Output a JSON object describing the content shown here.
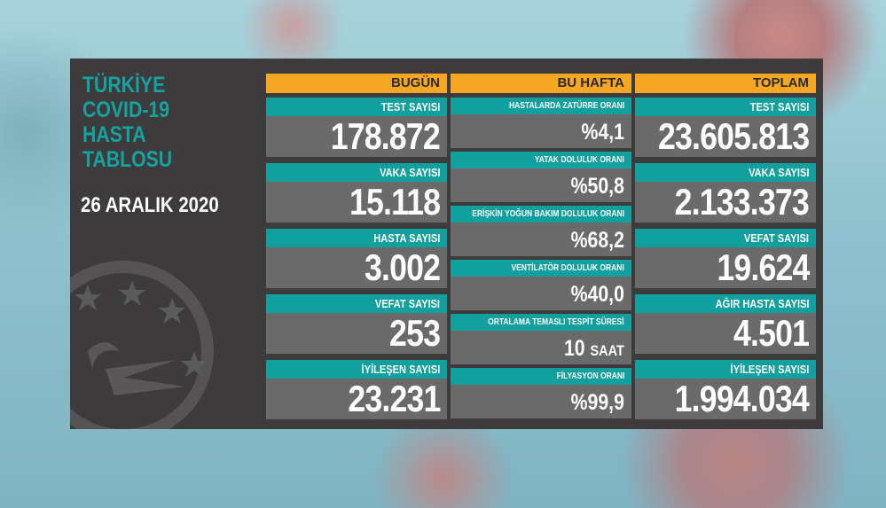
{
  "title_lines": [
    "TÜRKİYE",
    "COVID-19",
    "HASTA",
    "TABLOSU"
  ],
  "date": "26 ARALIK 2020",
  "colors": {
    "panel": "#3d3b3c",
    "header": "#f5a623",
    "label": "#11a09e",
    "value": "#6b6a6a",
    "title": "#14a3a1"
  },
  "today": {
    "header": "BUGÜN",
    "items": [
      {
        "label": "TEST SAYISI",
        "value": "178.872"
      },
      {
        "label": "VAKA SAYISI",
        "value": "15.118"
      },
      {
        "label": "HASTA SAYISI",
        "value": "3.002"
      },
      {
        "label": "VEFAT SAYISI",
        "value": "253"
      },
      {
        "label": "İYİLEŞEN SAYISI",
        "value": "23.231"
      }
    ]
  },
  "week": {
    "header": "BU HAFTA",
    "items": [
      {
        "label": "HASTALARDA ZATÜRRE ORANI",
        "value": "%4,1"
      },
      {
        "label": "YATAK DOLULUK ORANI",
        "value": "%50,8"
      },
      {
        "label": "ERİŞKİN YOĞUN BAKIM DOLULUK ORANI",
        "value": "%68,2"
      },
      {
        "label": "VENTİLATÖR DOLULUK ORANI",
        "value": "%40,0"
      },
      {
        "label": "ORTALAMA TEMASLI TESPİT SÜRESİ",
        "value": "10",
        "unit": "SAAT"
      },
      {
        "label": "FİLYASYON ORANI",
        "value": "%99,9"
      }
    ]
  },
  "total": {
    "header": "TOPLAM",
    "items": [
      {
        "label": "TEST SAYISI",
        "value": "23.605.813"
      },
      {
        "label": "VAKA SAYISI",
        "value": "2.133.373"
      },
      {
        "label": "VEFAT SAYISI",
        "value": "19.624"
      },
      {
        "label": "AĞIR HASTA SAYISI",
        "value": "4.501"
      },
      {
        "label": "İYİLEŞEN SAYISI",
        "value": "1.994.034"
      }
    ]
  }
}
